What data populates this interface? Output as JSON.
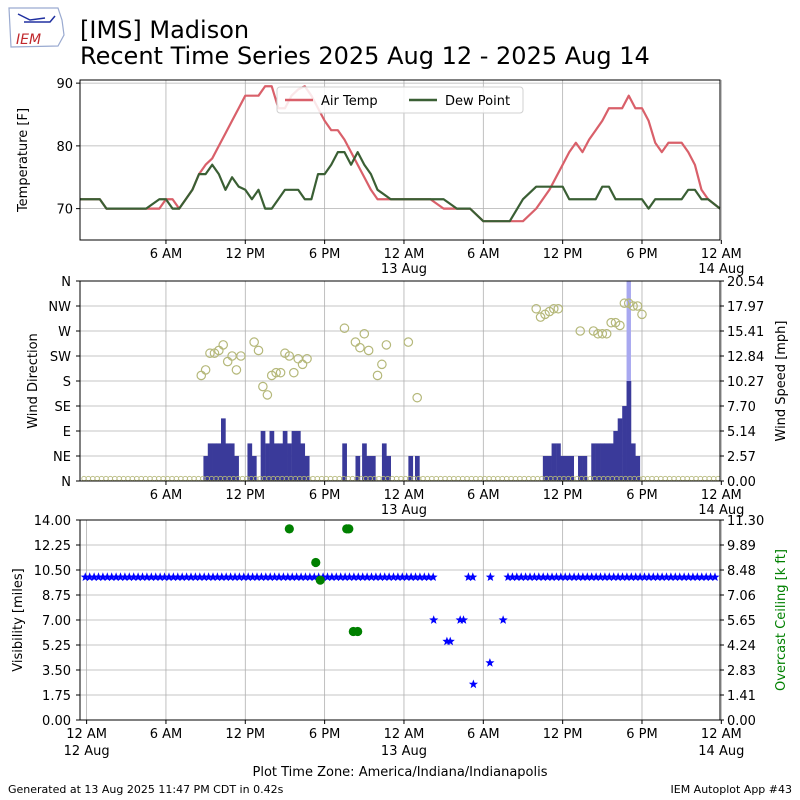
{
  "header": {
    "title_line1": "[IMS] Madison",
    "title_line2": "Recent Time Series 2025 Aug 12 - 2025 Aug 14",
    "logo_text": "IEM"
  },
  "footer": {
    "generated": "Generated at 13 Aug 2025 11:47 PM CDT in 0.42s",
    "app": "IEM Autoplot App #43"
  },
  "chart_data": [
    {
      "type": "line",
      "ylabel": "Temperature [F]",
      "ylim": [
        65,
        90.5
      ],
      "yticks": [
        70,
        80,
        90
      ],
      "xlim": [
        -0.5,
        47.9
      ],
      "xticks": [
        {
          "x": 6,
          "label": "6 AM",
          "sub": ""
        },
        {
          "x": 12,
          "label": "12 PM",
          "sub": ""
        },
        {
          "x": 18,
          "label": "6 PM",
          "sub": ""
        },
        {
          "x": 24,
          "label": "12 AM",
          "sub": "13 Aug"
        },
        {
          "x": 30,
          "label": "6 AM",
          "sub": ""
        },
        {
          "x": 36,
          "label": "12 PM",
          "sub": ""
        },
        {
          "x": 42,
          "label": "6 PM",
          "sub": ""
        },
        {
          "x": 48,
          "label": "12 AM",
          "sub": "14 Aug"
        }
      ],
      "grid": true,
      "legend_position": "top-center",
      "series": [
        {
          "name": "Air Temp",
          "color": "#d9606a",
          "x": [
            -0.5,
            1,
            1.5,
            4,
            4.5,
            5.5,
            6,
            6.5,
            7,
            7.5,
            8,
            8.5,
            9,
            9.5,
            10,
            10.5,
            11,
            11.5,
            12,
            12.5,
            13,
            13.5,
            14,
            14.5,
            15,
            15.5,
            16,
            16.5,
            17,
            17.5,
            18,
            18.5,
            19,
            19.5,
            20,
            20.5,
            21,
            21.5,
            22,
            23,
            24,
            25,
            26,
            27,
            28,
            29,
            30,
            31,
            32,
            33,
            34,
            35,
            36,
            36.5,
            37,
            37.5,
            38,
            38.5,
            39,
            39.5,
            40,
            40.5,
            41,
            41.5,
            42,
            42.5,
            43,
            43.5,
            44,
            44.5,
            45,
            45.5,
            46,
            46.5,
            47,
            47.9
          ],
          "y": [
            71.5,
            71.5,
            70,
            70,
            70,
            70,
            71.5,
            71.5,
            70,
            71.5,
            73,
            75.5,
            77,
            78,
            80,
            82,
            84,
            86,
            88,
            88,
            88,
            89.5,
            89.5,
            86,
            86,
            88,
            89,
            89.5,
            88,
            86,
            84,
            82.5,
            82.5,
            81,
            79,
            77,
            75,
            73,
            71.5,
            71.5,
            71.5,
            71.5,
            71.5,
            70,
            70,
            70,
            68,
            68,
            68,
            68,
            70,
            73,
            77,
            79,
            80.5,
            79,
            81,
            82.5,
            84,
            86,
            86,
            86,
            88,
            86,
            86,
            84,
            80.5,
            79,
            80.5,
            80.5,
            80.5,
            79,
            77,
            73,
            71.5,
            70
          ]
        },
        {
          "name": "Dew Point",
          "color": "#3a5f34",
          "x": [
            -0.5,
            1,
            1.5,
            4,
            4.5,
            5.5,
            6,
            6.5,
            7,
            7.5,
            8,
            8.5,
            9,
            9.5,
            10,
            10.5,
            11,
            11.5,
            12,
            12.5,
            13,
            13.5,
            14,
            14.5,
            15,
            15.5,
            16,
            16.5,
            17,
            17.5,
            18,
            18.5,
            19,
            19.5,
            20,
            20.5,
            21,
            21.5,
            22,
            23,
            24,
            25,
            26,
            27,
            28,
            29,
            30,
            31,
            32,
            33,
            34,
            35,
            36,
            36.5,
            37,
            37.5,
            38,
            38.5,
            39,
            39.5,
            40,
            40.5,
            41,
            41.5,
            42,
            42.5,
            43,
            43.5,
            44,
            44.5,
            45,
            45.5,
            46,
            46.5,
            47,
            47.9
          ],
          "y": [
            71.5,
            71.5,
            70,
            70,
            70,
            71.5,
            71.5,
            70,
            70,
            71.5,
            73,
            75.5,
            75.5,
            77,
            75.5,
            73,
            75,
            73.5,
            73,
            71.5,
            73,
            70,
            70,
            71.5,
            73,
            73,
            73,
            71.5,
            71.5,
            75.5,
            75.5,
            77,
            79,
            79,
            77,
            79,
            77,
            75.5,
            73,
            71.5,
            71.5,
            71.5,
            71.5,
            71.5,
            70,
            70,
            68,
            68,
            68,
            71.5,
            73.5,
            73.5,
            73.5,
            71.5,
            71.5,
            71.5,
            71.5,
            71.5,
            73.5,
            73.5,
            71.5,
            71.5,
            71.5,
            71.5,
            71.5,
            70,
            71.5,
            71.5,
            71.5,
            71.5,
            71.5,
            73,
            73,
            71.5,
            71.5,
            70
          ]
        }
      ]
    },
    {
      "type": "bar",
      "ylabel": "Wind Direction",
      "y2label": "Wind Speed [mph]",
      "ylim": [
        0,
        360
      ],
      "yticks": [
        {
          "v": 0,
          "label": "N"
        },
        {
          "v": 45,
          "label": "NE"
        },
        {
          "v": 90,
          "label": "E"
        },
        {
          "v": 135,
          "label": "SE"
        },
        {
          "v": 180,
          "label": "S"
        },
        {
          "v": 225,
          "label": "SW"
        },
        {
          "v": 270,
          "label": "W"
        },
        {
          "v": 315,
          "label": "NW"
        },
        {
          "v": 360,
          "label": "N"
        }
      ],
      "y2lim": [
        0,
        20.54
      ],
      "y2ticks": [
        "0.00",
        "2.57",
        "5.14",
        "7.70",
        "10.27",
        "12.84",
        "15.41",
        "17.97",
        "20.54"
      ],
      "xlim": [
        -0.5,
        47.9
      ],
      "grid": true,
      "wind_speed_bars": {
        "color": "#3a3a9a",
        "bar_width": 0.333,
        "x": [
          9,
          9.33,
          9.67,
          10,
          10.33,
          10.67,
          11,
          11.33,
          12.33,
          12.67,
          13.33,
          13.67,
          14,
          14.33,
          14.67,
          15,
          15.33,
          15.67,
          16,
          16.33,
          16.67,
          19.5,
          20.5,
          21,
          21.33,
          21.67,
          22.5,
          22.83,
          24.5,
          25,
          34.67,
          35,
          35.33,
          35.67,
          36,
          36.33,
          36.67,
          37.33,
          37.67,
          38.33,
          38.67,
          39,
          39.33,
          39.67,
          40,
          40.33,
          40.67,
          41,
          41.33,
          41.67
        ],
        "y": [
          2.57,
          3.86,
          3.86,
          3.86,
          6.43,
          3.86,
          3.86,
          2.57,
          3.86,
          2.57,
          5.14,
          3.86,
          5.14,
          3.86,
          3.86,
          5.14,
          3.86,
          5.14,
          5.14,
          3.86,
          2.57,
          3.86,
          2.57,
          3.86,
          2.57,
          2.57,
          3.86,
          2.57,
          2.57,
          2.57,
          2.57,
          2.57,
          3.86,
          3.86,
          2.57,
          2.57,
          2.57,
          2.57,
          2.57,
          3.86,
          3.86,
          3.86,
          3.86,
          3.86,
          5.14,
          6.43,
          7.7,
          10.27,
          3.86,
          2.57
        ]
      },
      "wind_gust_bar": {
        "color": "#a8a8f0",
        "x": 41,
        "y": 20.54
      },
      "wind_direction_points": {
        "color": "#b5b87a",
        "x": [
          8.67,
          9,
          9.33,
          9.67,
          10,
          10.33,
          10.67,
          11,
          11.33,
          11.67,
          12.67,
          13,
          13.33,
          13.67,
          14,
          14.33,
          14.67,
          15,
          15.33,
          15.67,
          16,
          16.33,
          16.67,
          19.5,
          20.33,
          20.67,
          21,
          21.33,
          22,
          22.33,
          22.67,
          24.33,
          25,
          34,
          34.33,
          34.67,
          35,
          35.33,
          35.67,
          37.33,
          38.33,
          38.67,
          39,
          39.33,
          39.67,
          40,
          40.33,
          40.67,
          41,
          41.33,
          41.67,
          42
        ],
        "y": [
          190,
          200,
          230,
          230,
          235,
          245,
          215,
          225,
          200,
          225,
          250,
          235,
          170,
          155,
          190,
          195,
          195,
          230,
          225,
          195,
          220,
          210,
          220,
          275,
          250,
          240,
          265,
          235,
          190,
          210,
          245,
          250,
          150,
          310,
          295,
          300,
          305,
          310,
          310,
          270,
          270,
          265,
          265,
          265,
          285,
          285,
          280,
          320,
          320,
          315,
          315,
          300
        ]
      },
      "calm_line_color": "#b5b87a"
    },
    {
      "type": "scatter",
      "ylabel": "Visibility [miles]",
      "y2label": "Overcast Ceiling [k ft]",
      "ylim": [
        0,
        14
      ],
      "yticks": [
        "0.00",
        "1.75",
        "3.50",
        "5.25",
        "7.00",
        "8.75",
        "10.50",
        "12.25",
        "14.00"
      ],
      "y2lim": [
        0,
        11.3
      ],
      "y2ticks": [
        "0.00",
        "1.41",
        "2.83",
        "4.24",
        "5.65",
        "7.06",
        "8.48",
        "9.89",
        "11.30"
      ],
      "xlim": [
        -0.5,
        47.9
      ],
      "xticks": [
        {
          "x": 0,
          "label": "12 AM",
          "sub": "12 Aug"
        },
        {
          "x": 6,
          "label": "6 AM",
          "sub": ""
        },
        {
          "x": 12,
          "label": "12 PM",
          "sub": ""
        },
        {
          "x": 18,
          "label": "6 PM",
          "sub": ""
        },
        {
          "x": 24,
          "label": "12 AM",
          "sub": "13 Aug"
        },
        {
          "x": 30,
          "label": "6 AM",
          "sub": ""
        },
        {
          "x": 36,
          "label": "12 PM",
          "sub": ""
        },
        {
          "x": 42,
          "label": "6 PM",
          "sub": ""
        },
        {
          "x": 48,
          "label": "12 AM",
          "sub": "14 Aug"
        }
      ],
      "xlabel": "Plot Time Zone: America/Indiana/Indianapolis",
      "grid": true,
      "visibility": {
        "color": "#0000ff",
        "full_value": 10,
        "full_gaps": [
          [
            26.33,
            28.67
          ],
          [
            29.5,
            30.33
          ],
          [
            30.83,
            31.67
          ]
        ],
        "dips_x": [
          26.25,
          27.25,
          27.5,
          28.25,
          28.5,
          29.25,
          30.5,
          31.5
        ],
        "dips_y": [
          7,
          5.5,
          5.5,
          7,
          7,
          2.5,
          4,
          7
        ]
      },
      "ceiling": {
        "color": "#008000",
        "x": [
          15.33,
          17.33,
          17.67,
          19.67,
          19.83,
          20.17,
          20.5
        ],
        "y": [
          10.8,
          8.9,
          7.9,
          10.8,
          10.8,
          5,
          5
        ]
      }
    }
  ]
}
